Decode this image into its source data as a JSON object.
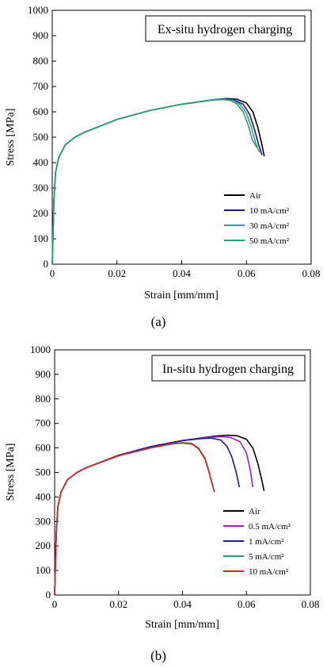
{
  "chart_data": [
    {
      "type": "line",
      "panel_label": "(a)",
      "title": "Ex-situ hydrogen charging",
      "xlabel": "Strain [mm/mm]",
      "ylabel": "Stress [MPa]",
      "xlim": [
        0,
        0.08
      ],
      "ylim": [
        0,
        1000
      ],
      "xticks": [
        "0",
        "0.02",
        "0.04",
        "0.06",
        "0.08"
      ],
      "yticks": [
        "0",
        "100",
        "200",
        "300",
        "400",
        "500",
        "600",
        "700",
        "800",
        "900",
        "1000"
      ],
      "legend_position": "bottom-right",
      "grid": false,
      "series": [
        {
          "name": "Air",
          "color": "#000000",
          "x": [
            0,
            0.0005,
            0.001,
            0.002,
            0.004,
            0.007,
            0.01,
            0.02,
            0.03,
            0.04,
            0.05,
            0.054,
            0.057,
            0.06,
            0.062,
            0.0635,
            0.0648,
            0.0655
          ],
          "y": [
            0,
            250,
            360,
            420,
            470,
            500,
            520,
            570,
            605,
            630,
            648,
            652,
            650,
            635,
            600,
            540,
            470,
            425
          ]
        },
        {
          "name": "10 mA/cm²",
          "color": "#1a1a8c",
          "x": [
            0,
            0.0005,
            0.001,
            0.002,
            0.004,
            0.007,
            0.01,
            0.02,
            0.03,
            0.04,
            0.05,
            0.053,
            0.056,
            0.059,
            0.061,
            0.0625,
            0.0638,
            0.0648
          ],
          "y": [
            0,
            250,
            360,
            420,
            470,
            500,
            520,
            570,
            605,
            630,
            648,
            651,
            648,
            630,
            590,
            530,
            470,
            430
          ]
        },
        {
          "name": "30 mA/cm²",
          "color": "#4a90a8",
          "x": [
            0,
            0.0005,
            0.001,
            0.002,
            0.004,
            0.007,
            0.01,
            0.02,
            0.03,
            0.04,
            0.05,
            0.053,
            0.056,
            0.058,
            0.06,
            0.0615,
            0.0628,
            0.064
          ],
          "y": [
            0,
            250,
            360,
            420,
            470,
            500,
            520,
            570,
            605,
            630,
            647,
            649,
            645,
            630,
            595,
            540,
            480,
            440
          ]
        },
        {
          "name": "50 mA/cm²",
          "color": "#2aa070",
          "x": [
            0,
            0.0005,
            0.001,
            0.002,
            0.004,
            0.007,
            0.01,
            0.02,
            0.03,
            0.04,
            0.05,
            0.053,
            0.055,
            0.057,
            0.059,
            0.0605,
            0.0618,
            0.0632
          ],
          "y": [
            0,
            250,
            360,
            420,
            470,
            500,
            520,
            570,
            605,
            630,
            647,
            648,
            645,
            632,
            600,
            550,
            490,
            460
          ]
        }
      ]
    },
    {
      "type": "line",
      "panel_label": "(b)",
      "title": "In-situ hydrogen charging",
      "xlabel": "Strain [mm/mm]",
      "ylabel": "Stress [MPa]",
      "xlim": [
        0,
        0.08
      ],
      "ylim": [
        0,
        1000
      ],
      "xticks": [
        "0",
        "0.02",
        "0.04",
        "0.06",
        "0.08"
      ],
      "yticks": [
        "0",
        "100",
        "200",
        "300",
        "400",
        "500",
        "600",
        "700",
        "800",
        "900",
        "1000"
      ],
      "legend_position": "bottom-right",
      "grid": false,
      "series": [
        {
          "name": "Air",
          "color": "#000000",
          "x": [
            0,
            0.0005,
            0.001,
            0.002,
            0.004,
            0.007,
            0.01,
            0.02,
            0.03,
            0.04,
            0.05,
            0.054,
            0.057,
            0.06,
            0.062,
            0.0635,
            0.0648,
            0.0655
          ],
          "y": [
            0,
            250,
            360,
            420,
            470,
            500,
            520,
            570,
            605,
            630,
            648,
            652,
            650,
            635,
            600,
            540,
            470,
            425
          ]
        },
        {
          "name": "0.5 mA/cm²",
          "color": "#a020c0",
          "x": [
            0,
            0.0005,
            0.001,
            0.002,
            0.004,
            0.007,
            0.01,
            0.02,
            0.03,
            0.04,
            0.048,
            0.052,
            0.055,
            0.058,
            0.06,
            0.0612,
            0.062
          ],
          "y": [
            0,
            250,
            360,
            420,
            470,
            500,
            520,
            570,
            605,
            630,
            643,
            646,
            643,
            625,
            580,
            510,
            440
          ]
        },
        {
          "name": "1 mA/cm²",
          "color": "#1a1aa0",
          "x": [
            0,
            0.0005,
            0.001,
            0.002,
            0.004,
            0.007,
            0.01,
            0.02,
            0.03,
            0.04,
            0.046,
            0.049,
            0.052,
            0.054,
            0.0555,
            0.0568,
            0.0578
          ],
          "y": [
            0,
            250,
            360,
            420,
            470,
            500,
            520,
            570,
            605,
            630,
            638,
            640,
            632,
            605,
            560,
            500,
            440
          ]
        },
        {
          "name": "5 mA/cm²",
          "color": "#2aa070",
          "x": [
            0,
            0.0005,
            0.001,
            0.002,
            0.004,
            0.007,
            0.01,
            0.02,
            0.03,
            0.037,
            0.04,
            0.043,
            0.045,
            0.047,
            0.0482,
            0.0492,
            0.05
          ],
          "y": [
            0,
            250,
            360,
            420,
            470,
            500,
            520,
            568,
            600,
            618,
            622,
            618,
            600,
            560,
            510,
            460,
            420
          ]
        },
        {
          "name": "10 mA/cm²",
          "color": "#e02020",
          "x": [
            0,
            0.0005,
            0.001,
            0.002,
            0.004,
            0.007,
            0.01,
            0.02,
            0.03,
            0.037,
            0.04,
            0.043,
            0.045,
            0.047,
            0.0482,
            0.0492,
            0.05
          ],
          "y": [
            0,
            250,
            360,
            420,
            470,
            500,
            520,
            568,
            600,
            617,
            620,
            615,
            597,
            555,
            505,
            455,
            420
          ]
        }
      ]
    }
  ]
}
